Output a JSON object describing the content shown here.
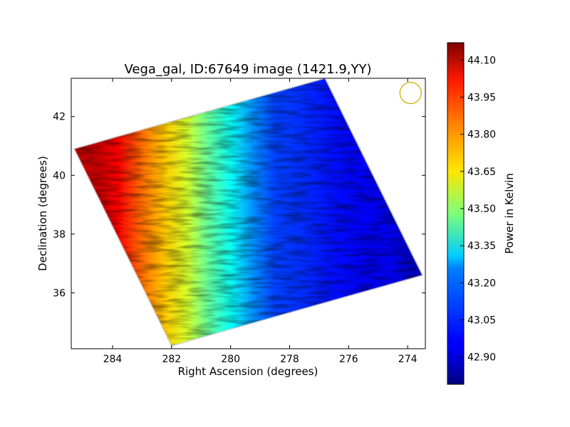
{
  "chart_data": {
    "type": "heatmap",
    "title": "Vega_gal, ID:67649 image (1421.9,YY)",
    "xlabel": "Right Ascension (degrees)",
    "ylabel": "Declination (degrees)",
    "xlim": [
      285.4,
      273.4
    ],
    "ylim": [
      34.1,
      43.3
    ],
    "x_ticks": [
      284,
      282,
      280,
      278,
      276,
      274
    ],
    "y_ticks": [
      36,
      38,
      40,
      42
    ],
    "x_tick_labels": [
      "284",
      "282",
      "280",
      "278",
      "276",
      "274"
    ],
    "y_tick_labels": [
      "36",
      "38",
      "40",
      "42"
    ],
    "colormap": "jet",
    "grid": false,
    "colorbar": {
      "label": "Power in Kelvin",
      "range": [
        42.79,
        44.17
      ],
      "ticks": [
        42.9,
        43.05,
        43.2,
        43.35,
        43.5,
        43.65,
        43.8,
        43.95,
        44.1
      ],
      "tick_labels": [
        "42.90",
        "43.05",
        "43.20",
        "43.35",
        "43.50",
        "43.65",
        "43.80",
        "43.95",
        "44.10"
      ]
    },
    "map_corners": [
      {
        "ra": 285.3,
        "dec": 40.9
      },
      {
        "ra": 276.8,
        "dec": 43.3
      },
      {
        "ra": 273.5,
        "dec": 36.6
      },
      {
        "ra": 282.0,
        "dec": 34.2
      }
    ],
    "power_profile": {
      "description_units": "RA (degrees) vs power (Kelvin)",
      "ra": [
        285.3,
        284.5,
        283.8,
        283.0,
        282.2,
        281.5,
        280.8,
        280.0,
        279.2,
        278.5,
        277.5,
        276.5,
        275.5,
        274.5,
        273.5
      ],
      "power": [
        44.05,
        44.08,
        44.0,
        43.85,
        43.72,
        43.6,
        43.45,
        43.32,
        43.15,
        43.05,
        43.02,
        42.98,
        42.95,
        42.93,
        42.85
      ]
    },
    "beam": {
      "ra": 273.9,
      "dec": 42.8,
      "color": "#c8b400"
    }
  }
}
